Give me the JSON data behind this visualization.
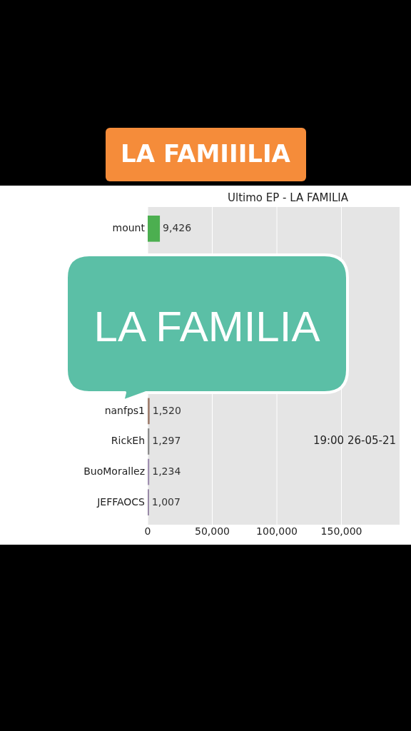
{
  "chart_data": {
    "type": "bar",
    "orientation": "horizontal",
    "title": "Ultimo EP - LA FAMILIA",
    "categories": [
      "mount",
      null,
      null,
      null,
      null,
      null,
      "nanfps1",
      "RickEh",
      "BuoMorallez",
      "JEFFAOCS"
    ],
    "values": [
      9426,
      null,
      null,
      null,
      null,
      null,
      1520,
      1297,
      1234,
      1007
    ],
    "value_labels": [
      "9,426",
      null,
      null,
      null,
      null,
      null,
      "1,520",
      "1,297",
      "1,234",
      "1,007"
    ],
    "colors": [
      "#4caf50",
      null,
      null,
      null,
      null,
      null,
      "#a08070",
      "#8c8c8c",
      "#a090b0",
      "#9080a0"
    ],
    "xlim": [
      0,
      195000
    ],
    "xticks": [
      0,
      {
        "value": 50000,
        "label": "50,000"
      },
      {
        "value": 100000,
        "label": "100,000"
      },
      {
        "value": 150000,
        "label": "150,000"
      }
    ],
    "grid": "x",
    "annotations": [
      "LA FAMIIILIA",
      "LA FAMILIA",
      "19:00 26-05-21"
    ]
  }
}
